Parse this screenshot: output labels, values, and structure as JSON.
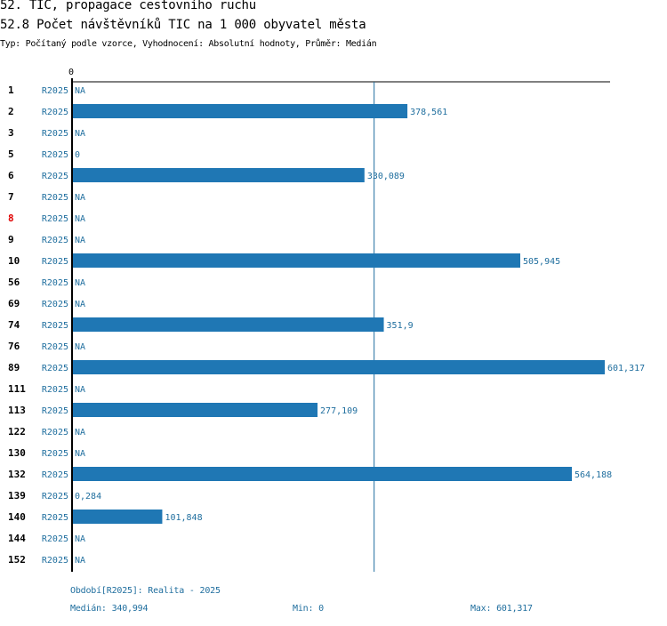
{
  "header": {
    "title": "52. TIC, propagace cestovního ruchu",
    "subtitle": "52.8 Počet návštěvníků TIC na 1 000 obyvatel města",
    "type_line": "Typ: Počítaný podle vzorce, Vyhodnocení: Absolutní hodnoty, Průměr: Medián"
  },
  "footer": {
    "period": "Období[R2025]: Realita - 2025",
    "median": "Medián: 340,994",
    "min": "Min: 0",
    "max": "Max: 601,317"
  },
  "colors": {
    "bar": "#1f77b4",
    "label": "#1f6e9e",
    "highlight": "#e00000"
  },
  "chart_data": {
    "type": "bar",
    "orientation": "horizontal",
    "axis_zero_label": "0",
    "xlim": [
      0,
      601.317
    ],
    "median": 340.994,
    "series_label": "R2025",
    "rows": [
      {
        "id": "1",
        "period": "R2025",
        "value": null,
        "label": "NA"
      },
      {
        "id": "2",
        "period": "R2025",
        "value": 378.561,
        "label": "378,561"
      },
      {
        "id": "3",
        "period": "R2025",
        "value": null,
        "label": "NA"
      },
      {
        "id": "5",
        "period": "R2025",
        "value": 0,
        "label": "0"
      },
      {
        "id": "6",
        "period": "R2025",
        "value": 330.089,
        "label": "330,089"
      },
      {
        "id": "7",
        "period": "R2025",
        "value": null,
        "label": "NA"
      },
      {
        "id": "8",
        "period": "R2025",
        "value": null,
        "label": "NA",
        "highlight": true
      },
      {
        "id": "9",
        "period": "R2025",
        "value": null,
        "label": "NA"
      },
      {
        "id": "10",
        "period": "R2025",
        "value": 505.945,
        "label": "505,945"
      },
      {
        "id": "56",
        "period": "R2025",
        "value": null,
        "label": "NA"
      },
      {
        "id": "69",
        "period": "R2025",
        "value": null,
        "label": "NA"
      },
      {
        "id": "74",
        "period": "R2025",
        "value": 351.9,
        "label": "351,9"
      },
      {
        "id": "76",
        "period": "R2025",
        "value": null,
        "label": "NA"
      },
      {
        "id": "89",
        "period": "R2025",
        "value": 601.317,
        "label": "601,317"
      },
      {
        "id": "111",
        "period": "R2025",
        "value": null,
        "label": "NA"
      },
      {
        "id": "113",
        "period": "R2025",
        "value": 277.109,
        "label": "277,109"
      },
      {
        "id": "122",
        "period": "R2025",
        "value": null,
        "label": "NA"
      },
      {
        "id": "130",
        "period": "R2025",
        "value": null,
        "label": "NA"
      },
      {
        "id": "132",
        "period": "R2025",
        "value": 564.188,
        "label": "564,188"
      },
      {
        "id": "139",
        "period": "R2025",
        "value": 0.284,
        "label": "0,284"
      },
      {
        "id": "140",
        "period": "R2025",
        "value": 101.848,
        "label": "101,848"
      },
      {
        "id": "144",
        "period": "R2025",
        "value": null,
        "label": "NA"
      },
      {
        "id": "152",
        "period": "R2025",
        "value": null,
        "label": "NA"
      }
    ]
  }
}
